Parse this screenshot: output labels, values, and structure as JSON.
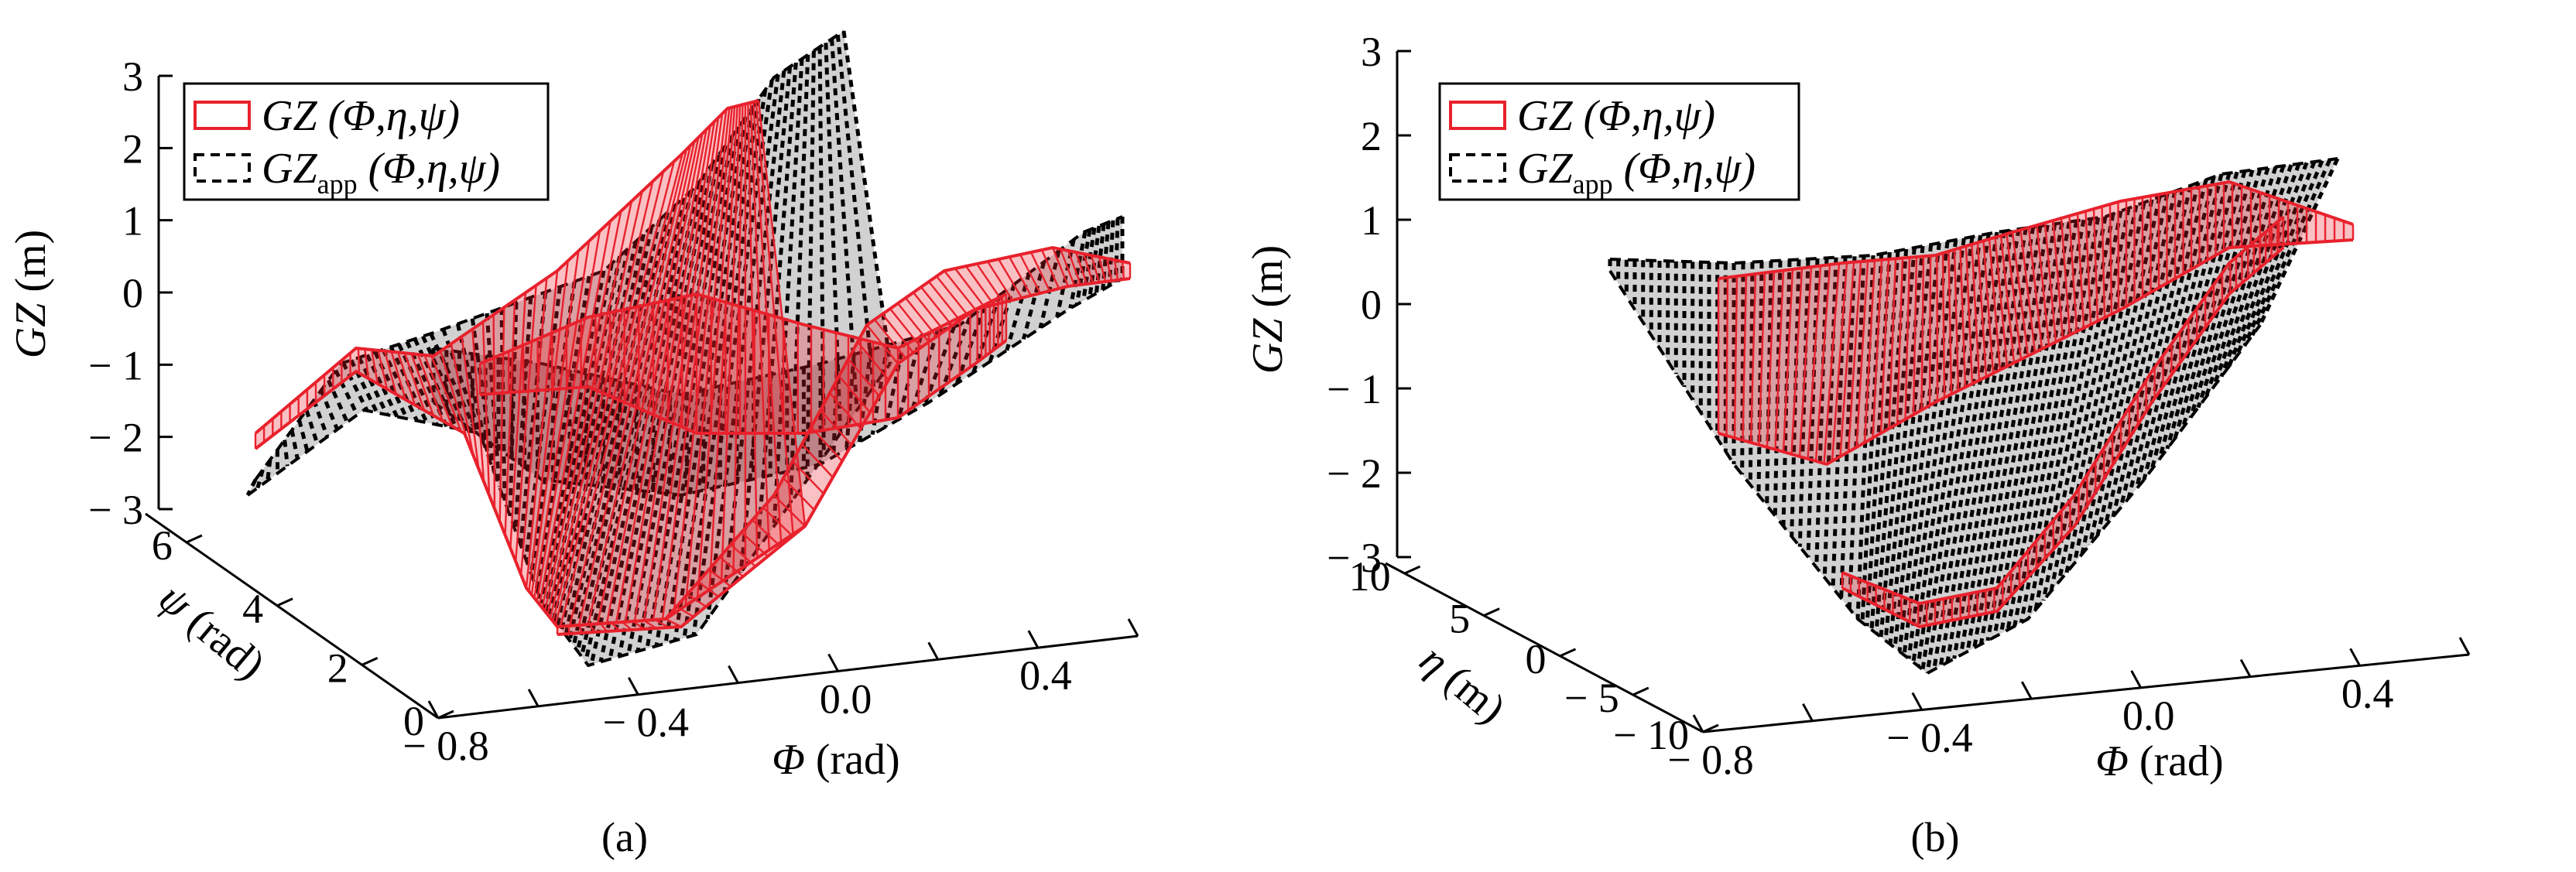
{
  "chart_data": [
    {
      "type": "surface3d",
      "panel": "(a)",
      "zlabel_main": "GZ",
      "zlabel_unit": " (m)",
      "xlabel_main": "Φ",
      "xlabel_unit": " (rad)",
      "ylabel_main": "ψ",
      "ylabel_unit": " (rad)",
      "zticks": [
        "3",
        "2",
        "1",
        "0",
        "− 1",
        "− 2",
        "− 3"
      ],
      "xticks": [
        "− 0.8",
        "− 0.4",
        "0.0",
        "0.4"
      ],
      "yticks": [
        "0",
        "2",
        "4",
        "6"
      ],
      "zlim": [
        -3,
        3
      ],
      "xlim": [
        -0.8,
        0.6
      ],
      "ylim": [
        0,
        6.5
      ],
      "legend": {
        "position": "top-left",
        "entries": [
          {
            "main": "GZ",
            "sub": "",
            "args": " (Φ,η,ψ)",
            "color": "#e8212c",
            "style": "solid"
          },
          {
            "main": "GZ",
            "sub": "app",
            "args": " (Φ,η,ψ)",
            "color": "#000000",
            "style": "dashed"
          }
        ]
      },
      "series": [
        {
          "name": "GZ (Φ,η,ψ)",
          "color": "#e8212c"
        },
        {
          "name": "GZapp (Φ,η,ψ)",
          "color": "#000000"
        }
      ]
    },
    {
      "type": "surface3d",
      "panel": "(b)",
      "zlabel_main": "GZ",
      "zlabel_unit": " (m)",
      "xlabel_main": "Φ",
      "xlabel_unit": " (rad)",
      "ylabel_main": "η",
      "ylabel_unit": " (m)",
      "zticks": [
        "3",
        "2",
        "1",
        "0",
        "− 1",
        "− 2",
        "− 3"
      ],
      "xticks": [
        "− 0.8",
        "− 0.4",
        "0.0",
        "0.4"
      ],
      "yticks": [
        "− 10",
        "− 5",
        "0",
        "5",
        "10"
      ],
      "zlim": [
        -3,
        3
      ],
      "xlim": [
        -0.8,
        0.6
      ],
      "ylim": [
        -10,
        10
      ],
      "legend": {
        "position": "top-left",
        "entries": [
          {
            "main": "GZ",
            "sub": "",
            "args": " (Φ,η,ψ)",
            "color": "#e8212c",
            "style": "solid"
          },
          {
            "main": "GZ",
            "sub": "app",
            "args": " (Φ,η,ψ)",
            "color": "#000000",
            "style": "dashed"
          }
        ]
      },
      "series": [
        {
          "name": "GZ (Φ,η,ψ)",
          "color": "#e8212c"
        },
        {
          "name": "GZapp (Φ,η,ψ)",
          "color": "#000000"
        }
      ]
    }
  ],
  "captions": [
    "(a)",
    "(b)"
  ]
}
